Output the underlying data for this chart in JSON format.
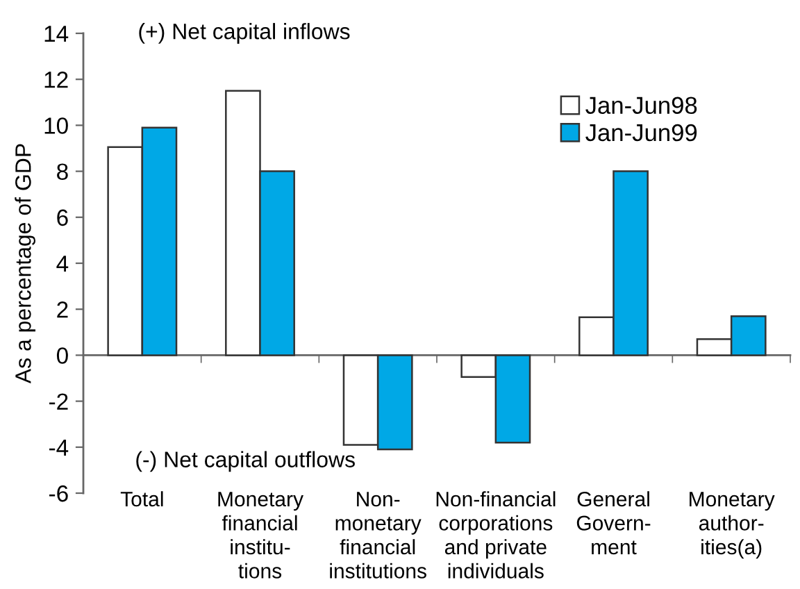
{
  "chart_data": {
    "type": "bar",
    "categories": [
      "Total",
      "Monetary\nfinancial\ninstitu-\ntions",
      "Non-\nmonetary\nfinancial\ninstitutions",
      "Non-financial\ncorporations\nand private\nindividuals",
      "General\nGovern-\nment",
      "Monetary\nauthor-\nities(a)"
    ],
    "series": [
      {
        "name": "Jan-Jun98",
        "color": "#ffffff",
        "values": [
          9.05,
          11.5,
          -3.9,
          -0.95,
          1.65,
          0.7
        ]
      },
      {
        "name": "Jan-Jun99",
        "color": "#00a8e6",
        "values": [
          9.9,
          8.0,
          -4.1,
          -3.8,
          8.0,
          1.7
        ]
      }
    ],
    "ylabel": "As a percentage of GDP",
    "ylim": [
      -6,
      14
    ],
    "yticks": [
      -6,
      -4,
      -2,
      0,
      2,
      4,
      6,
      8,
      10,
      12,
      14
    ],
    "annotations": [
      "(+) Net capital inflows",
      "(-) Net capital outflows"
    ],
    "legend": "top right"
  }
}
